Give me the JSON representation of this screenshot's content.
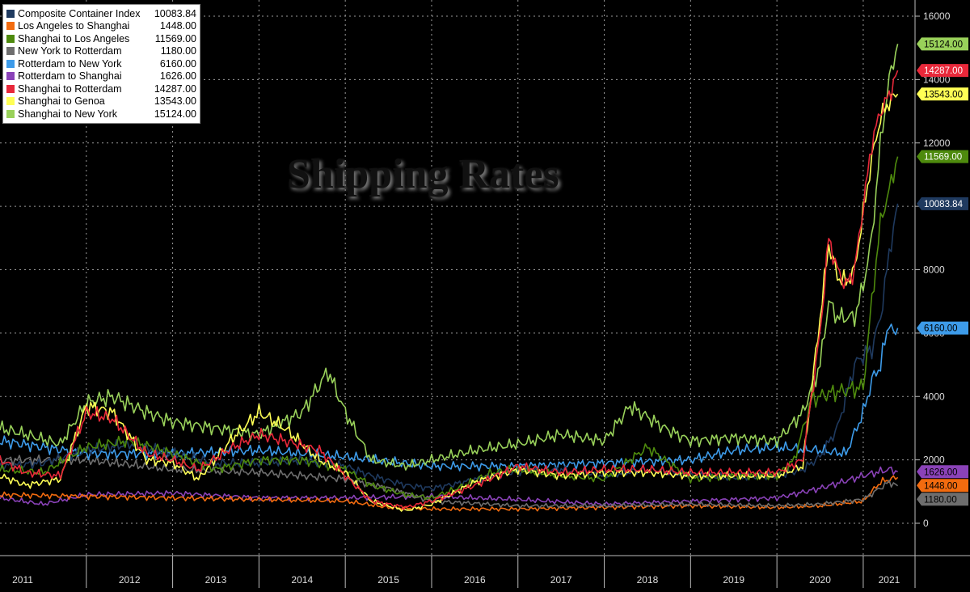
{
  "chart_data": {
    "type": "line",
    "title": "Shipping Rates",
    "x_tick_labels": [
      "2011",
      "2012",
      "2013",
      "2014",
      "2015",
      "2016",
      "2017",
      "2018",
      "2019",
      "2020",
      "2021"
    ],
    "y_tick_labels": [
      "0",
      "2000",
      "4000",
      "6000",
      "8000",
      "10000",
      "12000",
      "14000",
      "16000"
    ],
    "xlim": [
      2011.0,
      2021.6
    ],
    "ylim": [
      -1000,
      16500
    ],
    "grid": true,
    "legend_position": "top-left",
    "series": [
      {
        "name": "Composite Container Index",
        "legend_value": "10083.84",
        "last_label": "10083.84",
        "color": "#1f3a5f",
        "label_text_color": "#ffffff",
        "x": [
          2011.0,
          2011.5,
          2012.0,
          2012.5,
          2013.0,
          2013.5,
          2014.0,
          2014.5,
          2015.0,
          2015.3,
          2015.7,
          2016.0,
          2016.3,
          2016.7,
          2017.0,
          2017.5,
          2018.0,
          2018.5,
          2019.0,
          2019.5,
          2020.0,
          2020.3,
          2020.5,
          2020.7,
          2020.9,
          2021.0,
          2021.1,
          2021.2,
          2021.3,
          2021.4
        ],
        "y": [
          1800,
          1900,
          2300,
          2500,
          2200,
          1900,
          1900,
          2000,
          1800,
          1500,
          1200,
          1100,
          1250,
          1500,
          1650,
          1700,
          1500,
          1700,
          1500,
          1450,
          1500,
          1700,
          2100,
          3000,
          5000,
          5300,
          5500,
          6500,
          8500,
          10084
        ]
      },
      {
        "name": "Los Angeles to Shanghai",
        "legend_value": "1448.00",
        "last_label": "1448.00",
        "color": "#f26b0f",
        "label_text_color": "#000000",
        "x": [
          2011.0,
          2012.0,
          2013.0,
          2014.0,
          2015.0,
          2015.5,
          2016.0,
          2017.0,
          2018.0,
          2019.0,
          2020.0,
          2020.5,
          2021.0,
          2021.2,
          2021.4
        ],
        "y": [
          900,
          850,
          800,
          750,
          700,
          500,
          450,
          450,
          500,
          550,
          500,
          550,
          700,
          1300,
          1448
        ]
      },
      {
        "name": "Shanghai to Los Angeles",
        "legend_value": "11569.00",
        "last_label": "11569.00",
        "color": "#4e8a0d",
        "label_text_color": "#ffffff",
        "x": [
          2011.0,
          2011.5,
          2012.0,
          2012.5,
          2013.0,
          2013.5,
          2014.0,
          2014.5,
          2015.0,
          2015.3,
          2015.7,
          2016.0,
          2016.3,
          2016.7,
          2017.0,
          2017.5,
          2018.0,
          2018.5,
          2019.0,
          2019.5,
          2020.0,
          2020.2,
          2020.4,
          2020.6,
          2020.8,
          2021.0,
          2021.1,
          2021.2,
          2021.3,
          2021.4
        ],
        "y": [
          1700,
          1600,
          2400,
          2600,
          2200,
          1700,
          2000,
          2000,
          1700,
          1200,
          900,
          800,
          1100,
          1600,
          1700,
          1500,
          1400,
          2400,
          1400,
          1500,
          1500,
          2000,
          3900,
          4100,
          4200,
          4300,
          7000,
          9500,
          10500,
          11569
        ]
      },
      {
        "name": "New York to Rotterdam",
        "legend_value": "1180.00",
        "last_label": "1180.00",
        "color": "#6e6e6e",
        "label_text_color": "#000000",
        "x": [
          2011.0,
          2012.0,
          2013.0,
          2014.0,
          2015.0,
          2015.5,
          2016.0,
          2017.0,
          2018.0,
          2019.0,
          2020.0,
          2020.5,
          2021.0,
          2021.3,
          2021.4
        ],
        "y": [
          2000,
          2000,
          1700,
          1600,
          1400,
          1100,
          700,
          550,
          550,
          600,
          550,
          600,
          750,
          1300,
          1180
        ]
      },
      {
        "name": "Rotterdam to New York",
        "legend_value": "6160.00",
        "last_label": "6160.00",
        "color": "#3d9be9",
        "label_text_color": "#000000",
        "x": [
          2011.0,
          2011.5,
          2012.0,
          2013.0,
          2014.0,
          2015.0,
          2016.0,
          2017.0,
          2018.0,
          2019.0,
          2019.5,
          2020.0,
          2020.5,
          2020.8,
          2021.0,
          2021.1,
          2021.2,
          2021.3,
          2021.35,
          2021.4
        ],
        "y": [
          2600,
          2400,
          2200,
          2200,
          2300,
          2100,
          1800,
          1800,
          1900,
          2000,
          2300,
          2400,
          2300,
          2200,
          3500,
          4500,
          5000,
          6400,
          5900,
          6160
        ]
      },
      {
        "name": "Rotterdam to Shanghai",
        "legend_value": "1626.00",
        "last_label": "1626.00",
        "color": "#8a42b8",
        "label_text_color": "#000000",
        "x": [
          2011.0,
          2011.5,
          2012.0,
          2013.0,
          2014.0,
          2015.0,
          2016.0,
          2017.0,
          2018.0,
          2019.0,
          2020.0,
          2020.5,
          2021.0,
          2021.3,
          2021.4
        ],
        "y": [
          800,
          600,
          900,
          950,
          800,
          800,
          850,
          750,
          600,
          700,
          800,
          1100,
          1500,
          1700,
          1626
        ]
      },
      {
        "name": "Shanghai to Rotterdam",
        "legend_value": "14287.00",
        "last_label": "14287.00",
        "color": "#e8283a",
        "label_text_color": "#ffffff",
        "x": [
          2011.0,
          2011.3,
          2011.7,
          2012.0,
          2012.3,
          2012.7,
          2013.0,
          2013.3,
          2013.7,
          2014.0,
          2014.3,
          2014.7,
          2015.0,
          2015.3,
          2015.7,
          2016.0,
          2016.5,
          2017.0,
          2017.5,
          2018.0,
          2018.5,
          2019.0,
          2019.5,
          2020.0,
          2020.3,
          2020.5,
          2020.6,
          2020.7,
          2020.8,
          2020.9,
          2021.0,
          2021.1,
          2021.2,
          2021.3,
          2021.4
        ],
        "y": [
          2000,
          1600,
          1500,
          3500,
          3300,
          2200,
          2000,
          1700,
          2400,
          2800,
          2600,
          2300,
          1500,
          700,
          500,
          700,
          1200,
          1800,
          1600,
          1700,
          1700,
          1600,
          1600,
          1600,
          2000,
          6000,
          9000,
          8000,
          7500,
          8000,
          10000,
          12000,
          13000,
          13500,
          14287
        ]
      },
      {
        "name": "Shanghai to Genoa",
        "legend_value": "13543.00",
        "last_label": "13543.00",
        "color": "#ffff55",
        "label_text_color": "#000000",
        "x": [
          2011.0,
          2011.3,
          2011.7,
          2012.0,
          2012.3,
          2012.7,
          2013.0,
          2013.3,
          2013.7,
          2014.0,
          2014.3,
          2014.7,
          2015.0,
          2015.3,
          2015.7,
          2016.0,
          2016.5,
          2017.0,
          2017.5,
          2018.0,
          2018.5,
          2019.0,
          2019.5,
          2020.0,
          2020.3,
          2020.5,
          2020.6,
          2020.7,
          2020.8,
          2020.9,
          2021.0,
          2021.1,
          2021.2,
          2021.3,
          2021.4
        ],
        "y": [
          1500,
          1200,
          1400,
          3700,
          3500,
          2000,
          1900,
          1400,
          2700,
          3500,
          3000,
          2000,
          1600,
          700,
          400,
          600,
          1300,
          1700,
          1500,
          1600,
          1600,
          1500,
          1500,
          1500,
          1800,
          6500,
          8800,
          7800,
          7600,
          8000,
          9800,
          11500,
          12800,
          13300,
          13543
        ]
      },
      {
        "name": "Shanghai to New York",
        "legend_value": "15124.00",
        "last_label": "15124.00",
        "color": "#99d15a",
        "label_text_color": "#000000",
        "x": [
          2011.0,
          2011.3,
          2011.7,
          2012.0,
          2012.3,
          2012.7,
          2013.0,
          2013.5,
          2014.0,
          2014.5,
          2014.8,
          2015.0,
          2015.3,
          2015.7,
          2016.0,
          2016.5,
          2017.0,
          2017.5,
          2018.0,
          2018.3,
          2018.7,
          2019.0,
          2019.5,
          2020.0,
          2020.3,
          2020.5,
          2020.6,
          2020.7,
          2020.9,
          2021.0,
          2021.1,
          2021.2,
          2021.3,
          2021.4
        ],
        "y": [
          3000,
          2800,
          2500,
          3800,
          4000,
          3500,
          3200,
          3000,
          2800,
          3500,
          4800,
          3500,
          2000,
          1800,
          2000,
          2300,
          2500,
          2800,
          2600,
          3700,
          3000,
          2600,
          2700,
          2600,
          3500,
          5000,
          7000,
          6500,
          6500,
          7500,
          9000,
          12000,
          14000,
          15124
        ]
      }
    ]
  }
}
